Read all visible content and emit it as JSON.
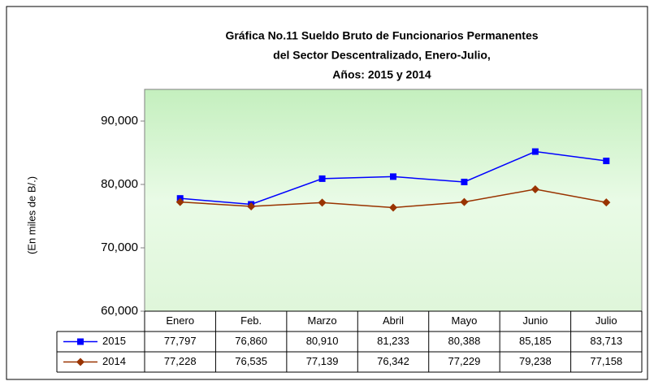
{
  "chart_data": {
    "type": "line",
    "title": [
      "Gráfica No.11 Sueldo Bruto de Funcionarios Permanentes",
      "del Sector Descentralizado, Enero-Julio,",
      "Años: 2015 y 2014"
    ],
    "y_label": "(En miles de B/.)",
    "categories": [
      "Enero",
      "Feb.",
      "Marzo",
      "Abril",
      "Mayo",
      "Junio",
      "Julio"
    ],
    "series": [
      {
        "name": "2015",
        "color": "#0000ff",
        "marker": "square",
        "values": [
          77797,
          76860,
          80910,
          81233,
          80388,
          85185,
          83713
        ],
        "value_labels": [
          "77,797",
          "76,860",
          "80,910",
          "81,233",
          "80,388",
          "85,185",
          "83,713"
        ]
      },
      {
        "name": "2014",
        "color": "#993300",
        "marker": "diamond",
        "values": [
          77228,
          76535,
          77139,
          76342,
          77229,
          79238,
          77158
        ],
        "value_labels": [
          "77,228",
          "76,535",
          "77,139",
          "76,342",
          "77,229",
          "79,238",
          "77,158"
        ]
      }
    ],
    "ylim": [
      60000,
      95000
    ],
    "yticks": [
      {
        "value": 60000,
        "label": "60,000"
      },
      {
        "value": 70000,
        "label": "70,000"
      },
      {
        "value": 80000,
        "label": "80,000"
      },
      {
        "value": 90000,
        "label": "90,000"
      }
    ]
  }
}
